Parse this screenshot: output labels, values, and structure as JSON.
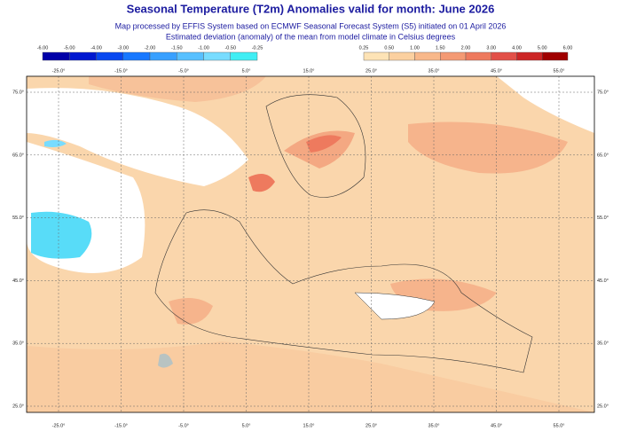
{
  "header": {
    "title": "Seasonal Temperature (T2m) Anomalies valid for month: June 2026",
    "subtitle_lines": [
      "Map processed by EFFIS System based on ECMWF Seasonal Forecast System (S5) initiated on 01 April 2026",
      "Estimated deviation (anomaly) of the mean from model climate in Celsius degrees"
    ]
  },
  "colorbar": {
    "negative": {
      "labels": [
        "-6.00",
        "-5.00",
        "-4.00",
        "-3.00",
        "-2.00",
        "-1.50",
        "-1.00",
        "-0.50",
        "-0.25"
      ],
      "colors": [
        "#0000a8",
        "#0018d0",
        "#0848f0",
        "#1878ff",
        "#38a0ff",
        "#58c0ff",
        "#78dcff",
        "#40eef4"
      ]
    },
    "positive": {
      "labels": [
        "0.25",
        "0.50",
        "1.00",
        "1.50",
        "2.00",
        "3.00",
        "4.00",
        "5.00",
        "6.00"
      ],
      "colors": [
        "#fde3b6",
        "#fbd0a0",
        "#f8b88a",
        "#f49a74",
        "#ee7a5e",
        "#e25048",
        "#cc2626",
        "#a00000"
      ]
    },
    "top_lon_labels_left": [
      "-25.0°",
      "-15.0°",
      "-5.0°",
      "5.0°"
    ],
    "top_lon_label_middle": "15.0°",
    "top_lon_labels_right": [
      "25.0°",
      "35.0°",
      "45.0°",
      "55.0°"
    ]
  },
  "map": {
    "lon_labels": [
      "-25.0°",
      "-15.0°",
      "-5.0°",
      "5.0°",
      "15.0°",
      "25.0°",
      "35.0°",
      "45.0°",
      "55.0°"
    ],
    "lat_labels": [
      "75.0°",
      "65.0°",
      "55.0°",
      "45.0°",
      "35.0°",
      "25.0°"
    ]
  }
}
